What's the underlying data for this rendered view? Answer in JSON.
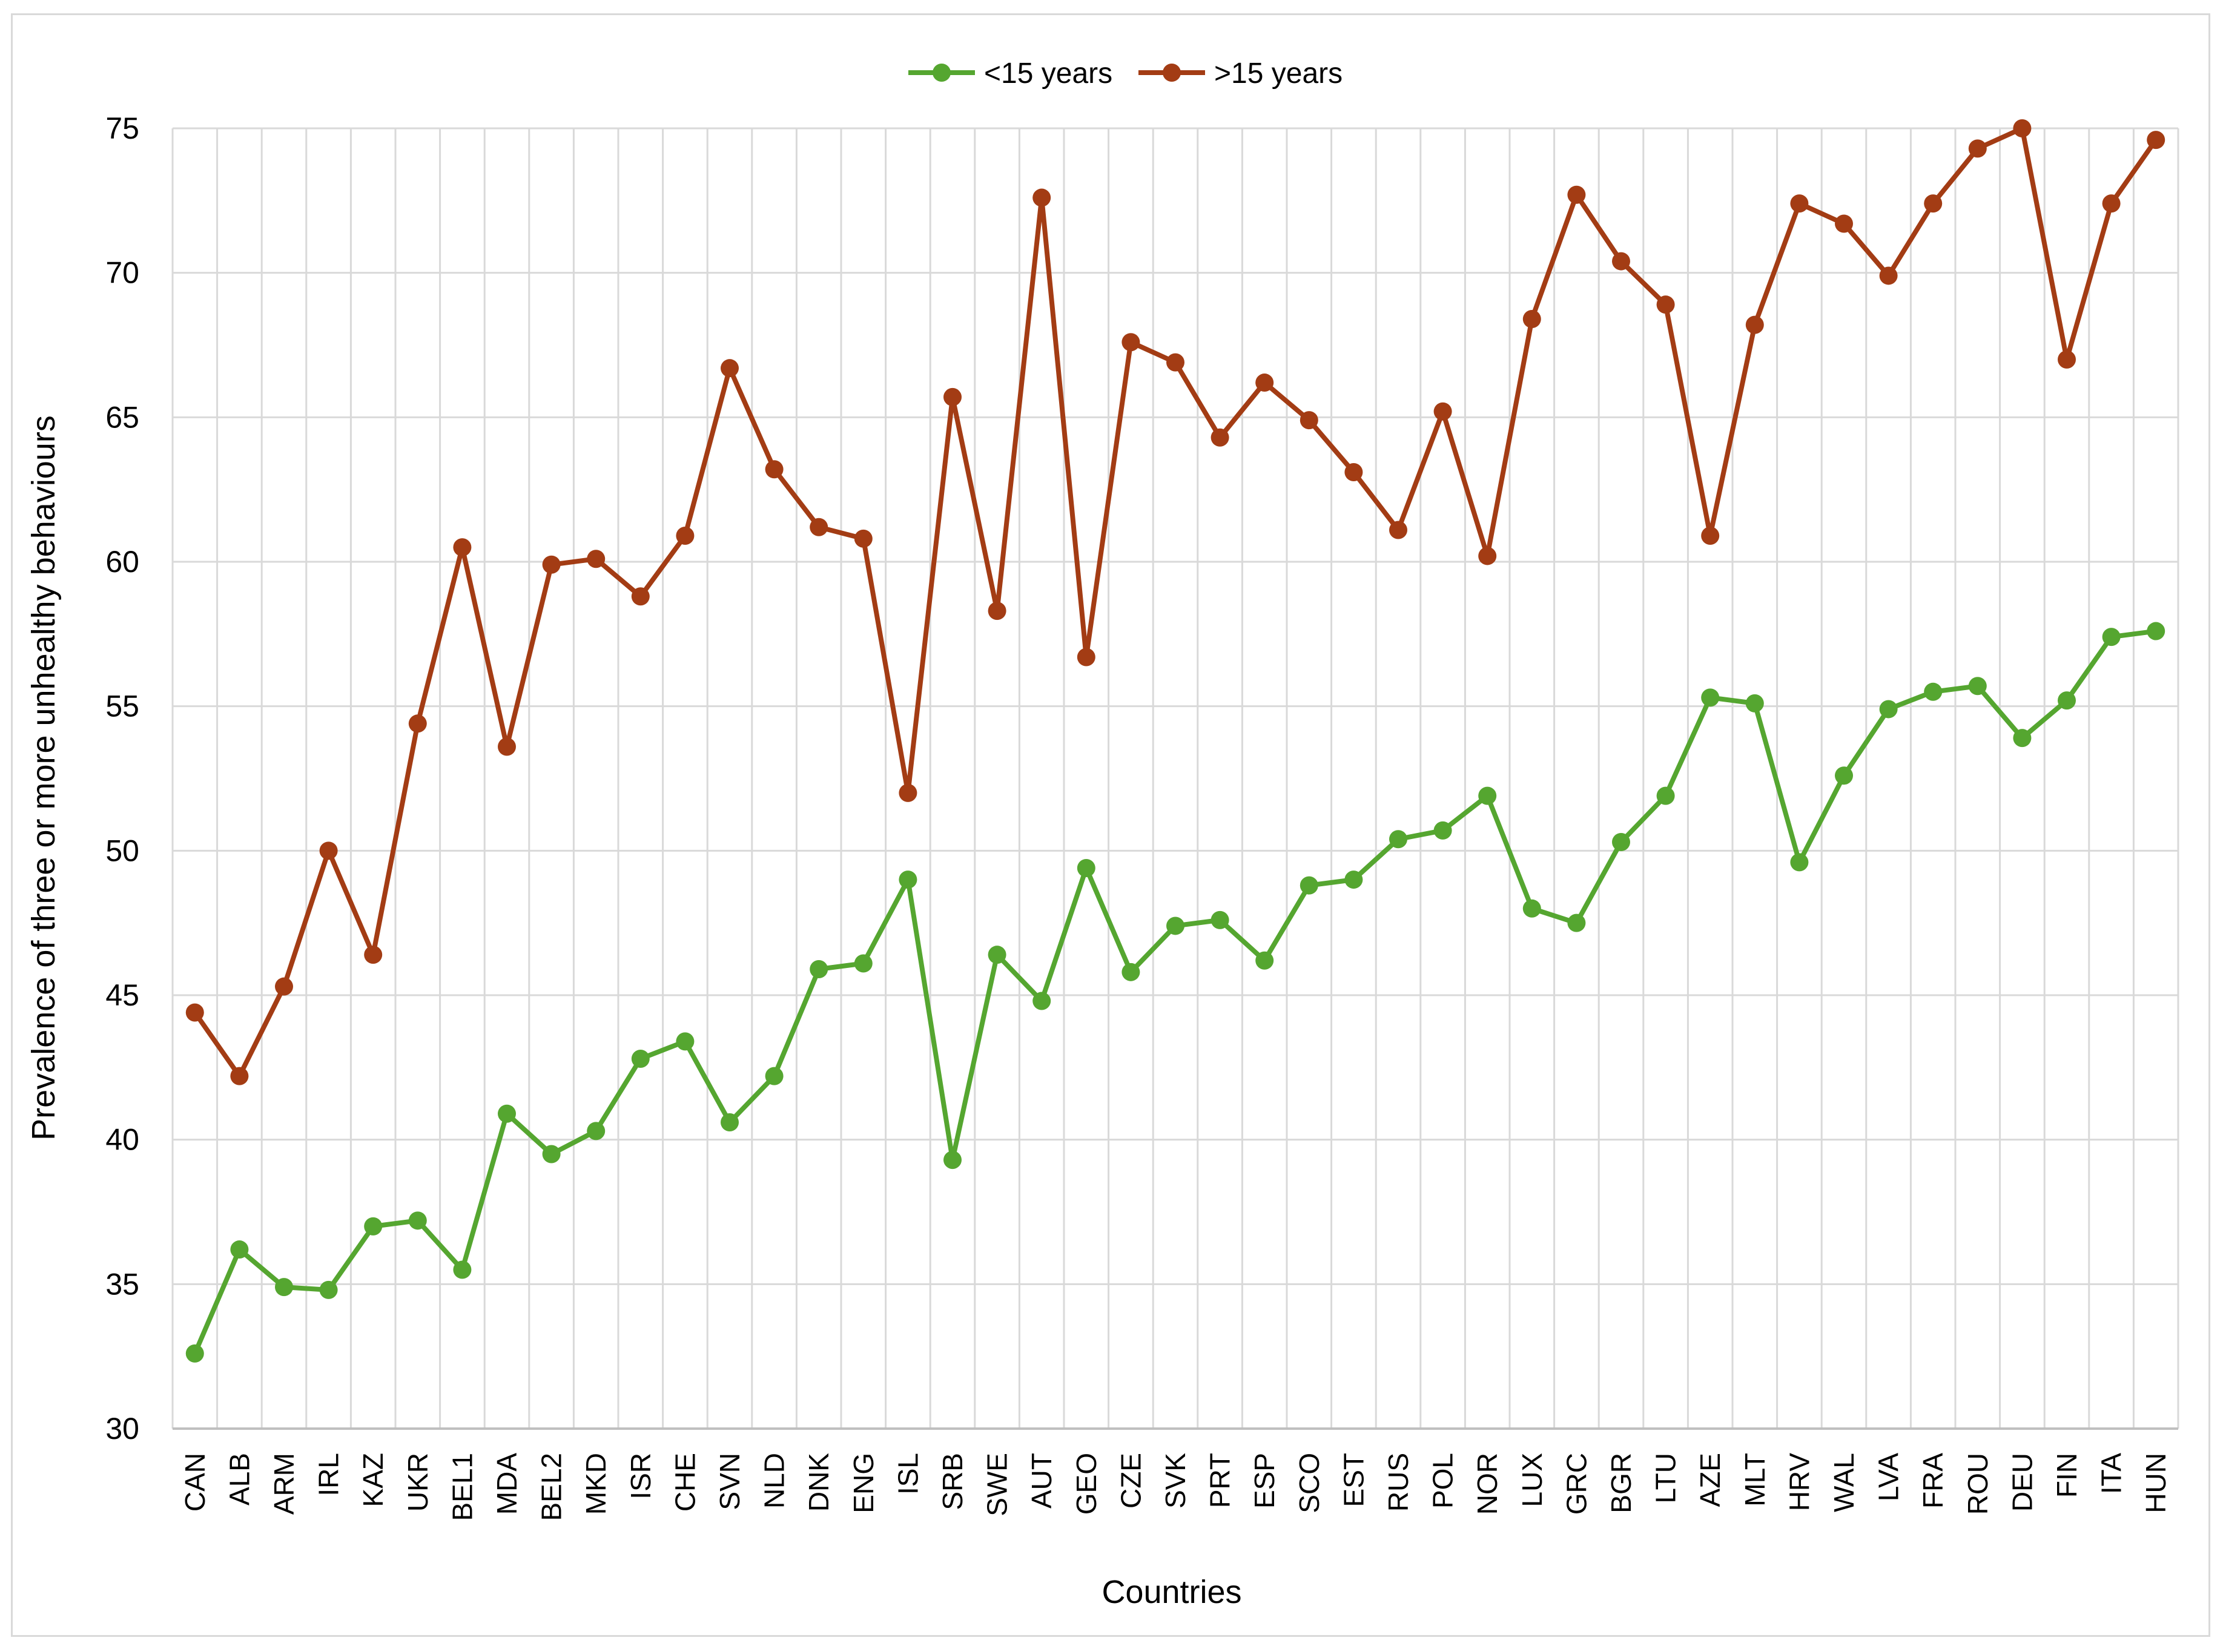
{
  "chart_data": {
    "type": "line",
    "title": "",
    "xlabel": "Countries",
    "ylabel": "Prevalence of three or more unhealthy behaviours",
    "ylim": [
      30,
      75
    ],
    "yticks": [
      30,
      35,
      40,
      45,
      50,
      55,
      60,
      65,
      70,
      75
    ],
    "grid": true,
    "legend_position": "top-center",
    "categories": [
      "CAN",
      "ALB",
      "ARM",
      "IRL",
      "KAZ",
      "UKR",
      "BEL1",
      "MDA",
      "BEL2",
      "MKD",
      "ISR",
      "CHE",
      "SVN",
      "NLD",
      "DNK",
      "ENG",
      "ISL",
      "SRB",
      "SWE",
      "AUT",
      "GEO",
      "CZE",
      "SVK",
      "PRT",
      "ESP",
      "SCO",
      "EST",
      "RUS",
      "POL",
      "NOR",
      "LUX",
      "GRC",
      "BGR",
      "LTU",
      "AZE",
      "MLT",
      "HRV",
      "WAL",
      "LVA",
      "FRA",
      "ROU",
      "DEU",
      "FIN",
      "ITA",
      "HUN"
    ],
    "series": [
      {
        "name": "<15 years",
        "color": "#55a630",
        "values": [
          32.6,
          36.2,
          34.9,
          34.8,
          37.0,
          37.2,
          35.5,
          40.9,
          39.5,
          40.3,
          42.8,
          43.4,
          40.6,
          42.2,
          45.9,
          46.1,
          49.0,
          39.3,
          46.4,
          44.8,
          49.4,
          45.8,
          47.4,
          47.6,
          46.2,
          48.8,
          49.0,
          50.4,
          50.7,
          51.9,
          48.0,
          47.5,
          50.3,
          51.9,
          55.3,
          55.1,
          49.6,
          52.6,
          54.9,
          55.5,
          55.7,
          53.9,
          55.2,
          57.4,
          57.6
        ]
      },
      {
        "name": ">15 years",
        "color": "#a33c14",
        "values": [
          44.4,
          42.2,
          45.3,
          50.0,
          46.4,
          54.4,
          60.5,
          53.6,
          59.9,
          60.1,
          58.8,
          60.9,
          66.7,
          63.2,
          61.2,
          60.8,
          52.0,
          65.7,
          58.3,
          72.6,
          56.7,
          67.6,
          66.9,
          64.3,
          66.2,
          64.9,
          63.1,
          61.1,
          65.2,
          60.2,
          68.4,
          72.7,
          70.4,
          68.9,
          60.9,
          68.2,
          72.4,
          71.7,
          69.9,
          72.4,
          74.3,
          75.0,
          67.0,
          72.4,
          74.6
        ]
      }
    ]
  }
}
